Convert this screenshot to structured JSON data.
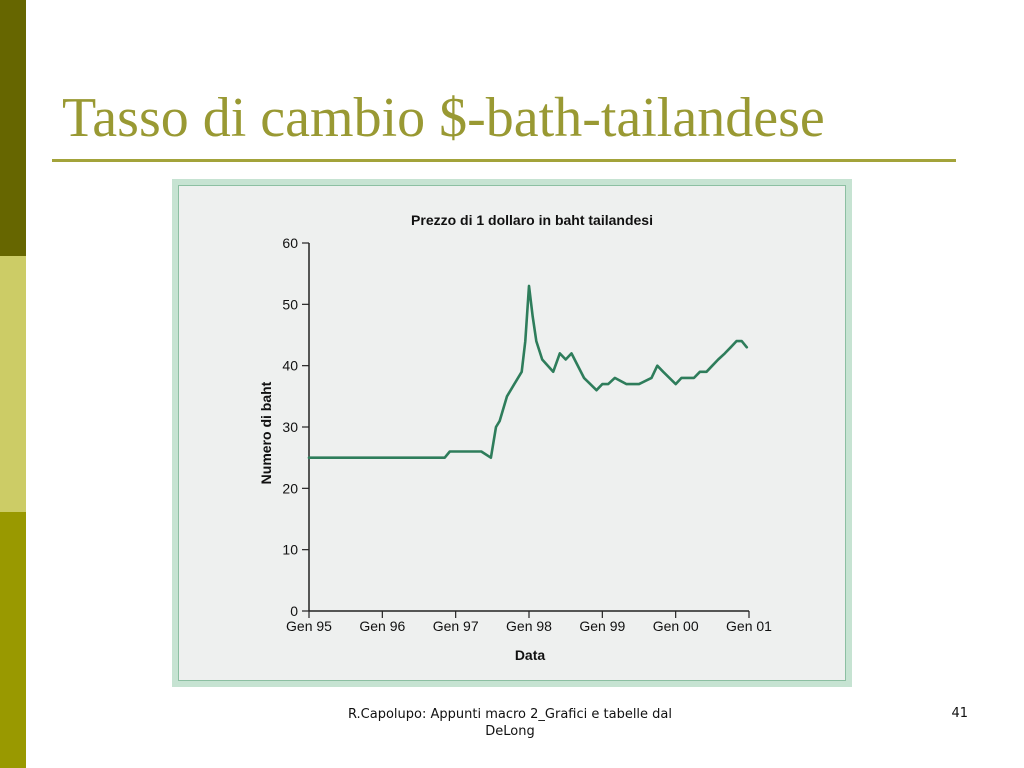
{
  "slide": {
    "title": "Tasso di cambio $-bath-tailandese",
    "footer": "R.Capolupo: Appunti macro 2_Grafici e tabelle dal DeLong",
    "page_number": "41",
    "colors": {
      "title": "#999933",
      "line": "#2e7d5b"
    }
  },
  "chart_data": {
    "type": "line",
    "title": "Prezzo di 1 dollaro in baht tailandesi",
    "xlabel": "Data",
    "ylabel": "Numero di baht",
    "xlim": [
      1995.0,
      2001.0
    ],
    "ylim": [
      0,
      60
    ],
    "yticks": [
      0,
      10,
      20,
      30,
      40,
      50,
      60
    ],
    "ytick_labels": [
      "0",
      "10",
      "20",
      "30",
      "40",
      "50",
      "60"
    ],
    "xticks": [
      1995,
      1996,
      1997,
      1998,
      1999,
      2000,
      2001
    ],
    "xtick_labels": [
      "Gen 95",
      "Gen 96",
      "Gen 97",
      "Gen 98",
      "Gen 99",
      "Gen 00",
      "Gen 01"
    ],
    "grid": false,
    "series": [
      {
        "x": [
          1995.0,
          1995.5,
          1996.0,
          1996.5,
          1996.85,
          1996.92,
          1997.0,
          1997.2,
          1997.35,
          1997.48,
          1997.55,
          1997.6,
          1997.7,
          1997.8,
          1997.9,
          1997.95,
          1998.0,
          1998.05,
          1998.1,
          1998.18,
          1998.33,
          1998.42,
          1998.5,
          1998.58,
          1998.75,
          1998.92,
          1999.0,
          1999.08,
          1999.17,
          1999.33,
          1999.5,
          1999.67,
          1999.75,
          1999.83,
          2000.0,
          2000.08,
          2000.17,
          2000.25,
          2000.33,
          2000.42,
          2000.5,
          2000.58,
          2000.67,
          2000.75,
          2000.83,
          2000.9,
          2000.97
        ],
        "y": [
          25,
          25,
          25,
          25,
          25,
          26,
          26,
          26,
          26,
          25,
          30,
          31,
          35,
          37,
          39,
          44,
          53,
          48,
          44,
          41,
          39,
          42,
          41,
          42,
          38,
          36,
          37,
          37,
          38,
          37,
          37,
          38,
          40,
          39,
          37,
          38,
          38,
          38,
          39,
          39,
          40,
          41,
          42,
          43,
          44,
          44,
          43
        ]
      }
    ]
  }
}
